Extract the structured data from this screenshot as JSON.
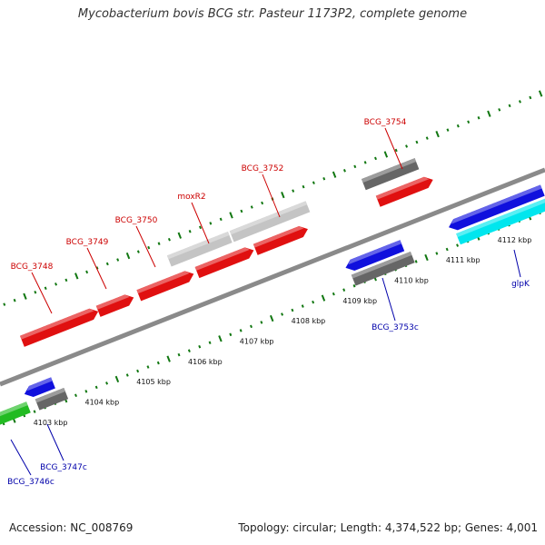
{
  "title": "Mycobacterium bovis BCG str. Pasteur 1173P2, complete genome",
  "footer": {
    "accession": "Accession: NC_008769",
    "info": "Topology: circular; Length: 4,374,522 bp; Genes: 4,001"
  },
  "colors": {
    "forward_gene": "#e01010",
    "reverse_gene": "#1010dd",
    "pseudo_gray": "#666666",
    "light_gray": "#c4c4c4",
    "cyan": "#00e6ee",
    "green": "#22bb22",
    "tick_green": "#117711",
    "forward_label": "#cc0000",
    "reverse_label": "#0000aa"
  },
  "ticks": [
    {
      "label": "4103 kbp"
    },
    {
      "label": "4104 kbp"
    },
    {
      "label": "4105 kbp"
    },
    {
      "label": "4106 kbp"
    },
    {
      "label": "4107 kbp"
    },
    {
      "label": "4108 kbp"
    },
    {
      "label": "4109 kbp"
    },
    {
      "label": "4110 kbp"
    },
    {
      "label": "4111 kbp"
    },
    {
      "label": "4112 kbp"
    }
  ],
  "forward_labels": [
    {
      "name": "BCG_3748"
    },
    {
      "name": "BCG_3749"
    },
    {
      "name": "BCG_3750"
    },
    {
      "name": "moxR2"
    },
    {
      "name": "BCG_3752"
    },
    {
      "name": "BCG_3754"
    }
  ],
  "reverse_labels": [
    {
      "name": "BCG_3746c"
    },
    {
      "name": "BCG_3747c"
    },
    {
      "name": "BCG_3753c"
    },
    {
      "name": "glpK"
    }
  ]
}
